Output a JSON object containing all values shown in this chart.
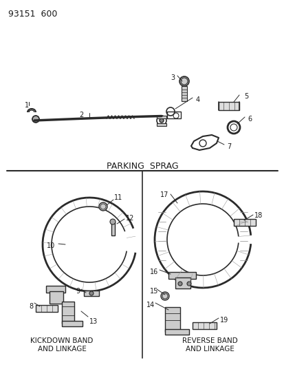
{
  "title": "93151  600",
  "background_color": "#ffffff",
  "line_color": "#2a2a2a",
  "text_color": "#1a1a1a",
  "parking_sprag_label": "PARKING  SPRAG",
  "kickdown_label": "KICKDOWN BAND\nAND LINKAGE",
  "reverse_label": "REVERSE BAND\nAND LINKAGE",
  "fig_width": 4.14,
  "fig_height": 5.33,
  "dpi": 100
}
